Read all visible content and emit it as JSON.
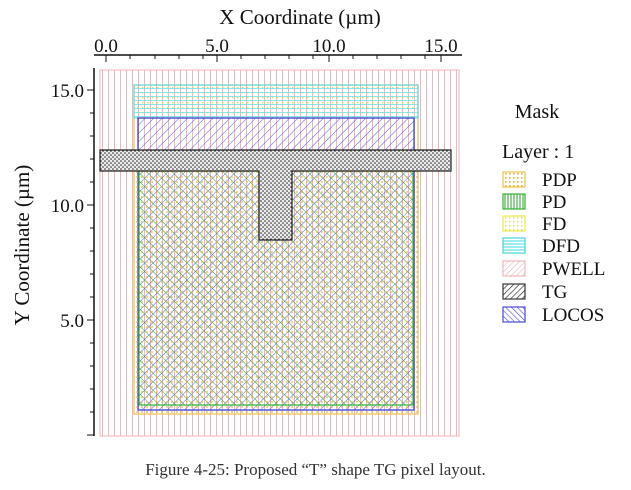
{
  "figure": {
    "x_axis_title": "X Coordinate (µm)",
    "y_axis_title": "Y Coordinate (µm)",
    "x_ticks": [
      "0.0",
      "5.0",
      "10.0",
      "15.0"
    ],
    "y_ticks": [
      "15.0",
      "10.0",
      "5.0"
    ],
    "legend_title": "Mask",
    "legend_subtitle": "Layer : 1",
    "legend": [
      {
        "name": "PDP",
        "color": "#e8c24a"
      },
      {
        "name": "PD",
        "color": "#2fb32f"
      },
      {
        "name": "FD",
        "color": "#e8e84a"
      },
      {
        "name": "DFD",
        "color": "#3fd6e0"
      },
      {
        "name": "PWELL",
        "color": "#f2a8b0"
      },
      {
        "name": "TG",
        "color": "#333333"
      },
      {
        "name": "LOCOS",
        "color": "#4a4ad6"
      }
    ],
    "caption": "Figure 4-25: Proposed “T” shape TG pixel layout."
  }
}
